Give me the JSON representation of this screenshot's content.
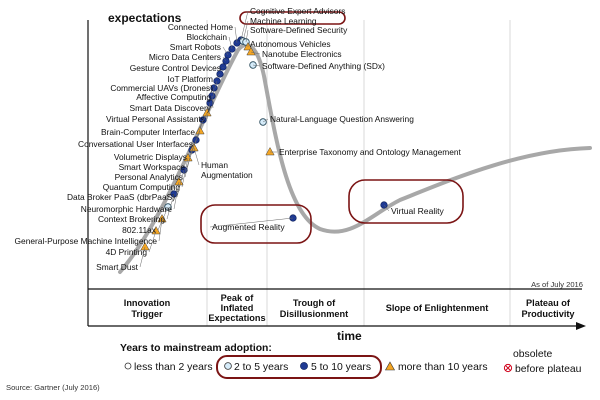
{
  "axis": {
    "y_title": "expectations",
    "x_title": "time"
  },
  "as_of": "As of July 2016",
  "source": "Source: Gartner (July 2016)",
  "phases": [
    {
      "line1": "Innovation",
      "line2": "Trigger",
      "line3": ""
    },
    {
      "line1": "Peak of",
      "line2": "Inflated",
      "line3": "Expectations"
    },
    {
      "line1": "Trough of",
      "line2": "Disillusionment",
      "line3": ""
    },
    {
      "line1": "Slope of Enlightenment",
      "line2": "",
      "line3": ""
    },
    {
      "line1": "Plateau of",
      "line2": "Productivity",
      "line3": ""
    }
  ],
  "legend": {
    "title": "Years to mainstream adoption:",
    "less_2": "less than 2 years",
    "two_5": "2 to 5 years",
    "five_10": "5 to 10 years",
    "more_10": "more than 10 years",
    "obsolete_line1": "obsolete",
    "obsolete_line2": "before plateau"
  },
  "colors": {
    "curve": "#a8a8a8",
    "dot_dark": "#1f3a93",
    "dot_light": "#d6ecfa",
    "triangle": "#f5a623",
    "highlight": "#7b1414",
    "obsolete": "#d0021b"
  },
  "technologies": [
    {
      "name": "Cognitive Expert Advisors",
      "type": "five_10"
    },
    {
      "name": "Machine Learning",
      "type": "two_5"
    },
    {
      "name": "Software-Defined Security",
      "type": "two_5"
    },
    {
      "name": "Autonomous Vehicles",
      "type": "more_10"
    },
    {
      "name": "Nanotube Electronics",
      "type": "more_10"
    },
    {
      "name": "Software-Defined Anything (SDx)",
      "type": "two_5"
    },
    {
      "name": "Natural-Language Question Answering",
      "type": "two_5"
    },
    {
      "name": "Enterprise Taxonomy and Ontology Management",
      "type": "more_10"
    },
    {
      "name": "Augmented Reality",
      "type": "five_10"
    },
    {
      "name": "Virtual Reality",
      "type": "five_10"
    },
    {
      "name": "Connected Home",
      "type": "five_10"
    },
    {
      "name": "Blockchain",
      "type": "five_10"
    },
    {
      "name": "Smart Robots",
      "type": "five_10"
    },
    {
      "name": "Micro Data Centers",
      "type": "five_10"
    },
    {
      "name": "Gesture Control Devices",
      "type": "five_10"
    },
    {
      "name": "IoT Platform",
      "type": "five_10"
    },
    {
      "name": "Commercial UAVs (Drones)",
      "type": "five_10"
    },
    {
      "name": "Affective Computing",
      "type": "five_10"
    },
    {
      "name": "Smart Data Discovery",
      "type": "five_10"
    },
    {
      "name": "Virtual Personal Assistants",
      "type": "five_10"
    },
    {
      "name": "Brain-Computer Interface",
      "type": "more_10"
    },
    {
      "name": "Conversational User Interfaces",
      "type": "five_10"
    },
    {
      "name": "Volumetric Displays",
      "type": "more_10"
    },
    {
      "name": "Smart Workspace",
      "type": "five_10"
    },
    {
      "name": "Personal Analytics",
      "type": "five_10"
    },
    {
      "name": "Quantum Computing",
      "type": "more_10"
    },
    {
      "name": "Data Broker PaaS (dbrPaaS)",
      "type": "five_10"
    },
    {
      "name": "Neuromorphic Hardware",
      "type": "more_10"
    },
    {
      "name": "Context Brokering",
      "type": "five_10"
    },
    {
      "name": "802.11ax",
      "type": "two_5"
    },
    {
      "name": "General-Purpose Machine Intelligence",
      "type": "more_10"
    },
    {
      "name": "4D Printing",
      "type": "more_10"
    },
    {
      "name": "Smart Dust",
      "type": "more_10"
    },
    {
      "name": "Human Augmentation",
      "type": "more_10"
    }
  ]
}
